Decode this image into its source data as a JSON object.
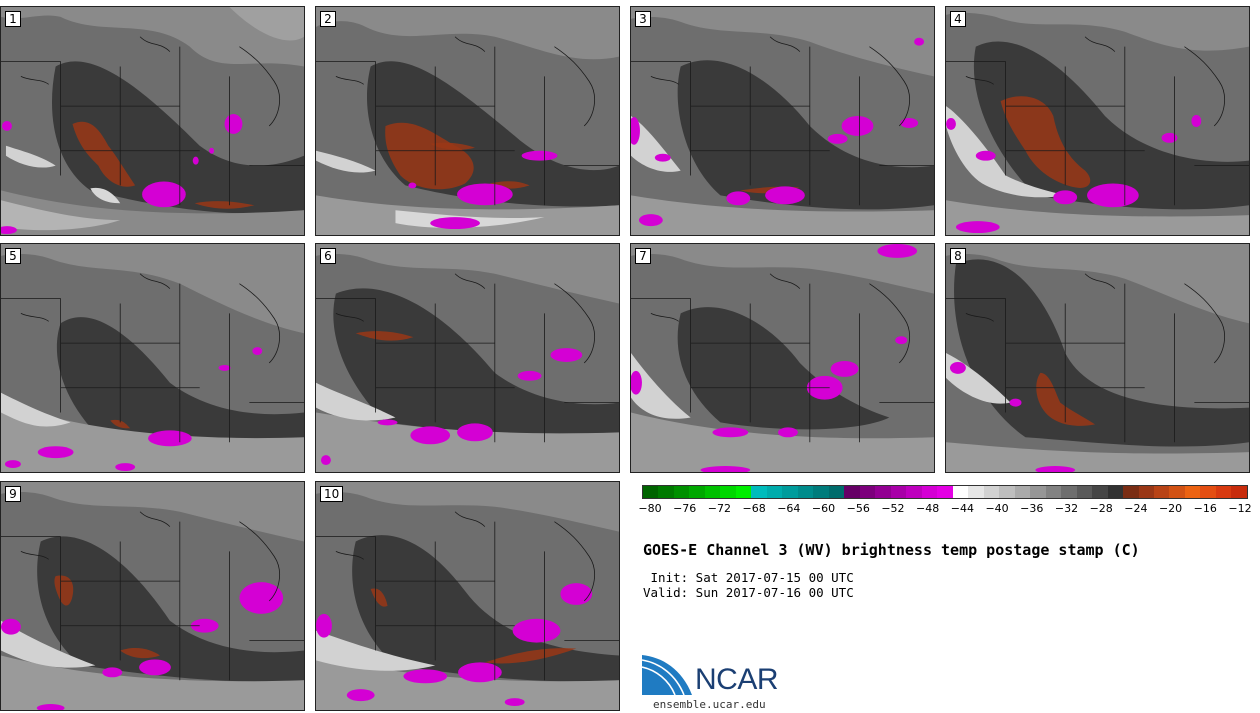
{
  "panels": [
    {
      "label": "1"
    },
    {
      "label": "2"
    },
    {
      "label": "3"
    },
    {
      "label": "4"
    },
    {
      "label": "5"
    },
    {
      "label": "6"
    },
    {
      "label": "7"
    },
    {
      "label": "8"
    },
    {
      "label": "9"
    },
    {
      "label": "10"
    }
  ],
  "colorbar": {
    "colors": [
      "#006400",
      "#007a00",
      "#009000",
      "#00a800",
      "#00c000",
      "#00d800",
      "#00ee00",
      "#00bcbc",
      "#00acac",
      "#009c9c",
      "#008c8c",
      "#007c7c",
      "#006c6c",
      "#660066",
      "#7c007c",
      "#920092",
      "#a800a8",
      "#be00be",
      "#d400d4",
      "#e400e4",
      "#fefefe",
      "#e6e6e6",
      "#d2d2d2",
      "#bebebe",
      "#aaaaaa",
      "#969696",
      "#828282",
      "#6e6e6e",
      "#5a5a5a",
      "#464646",
      "#323232",
      "#7a2d14",
      "#9a3716",
      "#b84316",
      "#d25214",
      "#ec6312",
      "#e44e12",
      "#d83a10",
      "#c82c0c"
    ],
    "ticks": [
      "−80",
      "−76",
      "−72",
      "−68",
      "−64",
      "−60",
      "−56",
      "−52",
      "−48",
      "−44",
      "−40",
      "−36",
      "−32",
      "−28",
      "−24",
      "−20",
      "−16",
      "−12"
    ]
  },
  "title": "GOES-E Channel 3 (WV) brightness temp postage stamp (C)",
  "init": " Init: Sat 2017-07-15 00 UTC",
  "valid": "Valid: Sun 2017-07-16 00 UTC",
  "logo_text": "NCAR",
  "site": "ensemble.ucar.edu"
}
